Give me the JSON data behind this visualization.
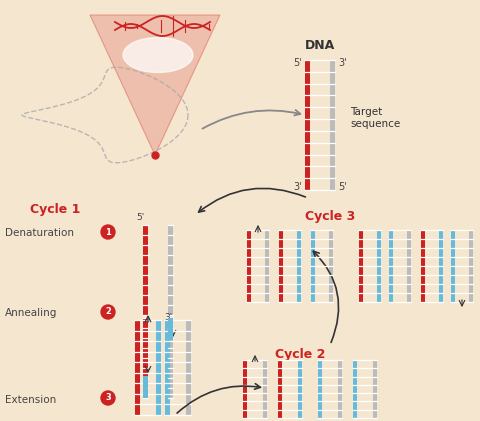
{
  "bg_color": "#f5e6d0",
  "red_color": "#cc2222",
  "blue_color": "#66bbdd",
  "gray_color": "#bbbbbb",
  "arrow_color": "#444444",
  "dna_label": "DNA",
  "target_label": "Target\nsequence",
  "cycle1_label": "Cycle 1",
  "cycle2_label": "Cycle 2",
  "cycle3_label": "Cycle 3",
  "denat_label": "Denaturation",
  "anneal_label": "Annealing",
  "ext_label": "Extension",
  "prime5": "5'",
  "prime3": "3'"
}
